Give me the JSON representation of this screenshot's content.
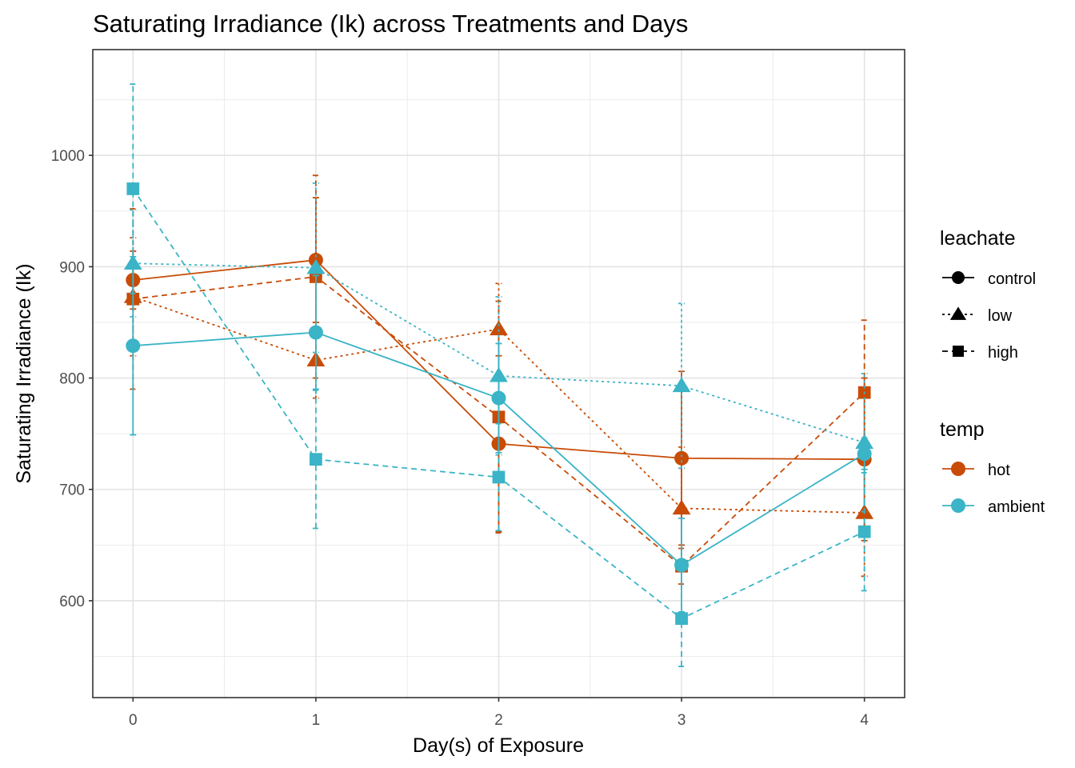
{
  "chart_data": {
    "type": "line",
    "title": "Saturating Irradiance (Ik) across Treatments and Days",
    "xlabel": "Day(s) of Exposure",
    "ylabel": "Saturating Irradiance (Ik)",
    "x": [
      0,
      1,
      2,
      3,
      4
    ],
    "x_ticks": [
      "0",
      "1",
      "2",
      "3",
      "4"
    ],
    "xlim": [
      -0.22,
      4.22
    ],
    "ylim": [
      513,
      1095
    ],
    "y_ticks": [
      600,
      700,
      800,
      900,
      1000
    ],
    "y_tick_labels": [
      "600",
      "700",
      "800",
      "900",
      "1000"
    ],
    "grid": true,
    "legend_placement": "right",
    "colors": {
      "hot": "#c84b06",
      "ambient": "#3ab4c6"
    },
    "legends": [
      {
        "title": "leachate",
        "entries": [
          {
            "key": "control",
            "label": "control",
            "shape": "circle",
            "linetype": "solid"
          },
          {
            "key": "low",
            "label": "low",
            "shape": "triangle",
            "linetype": "dotted"
          },
          {
            "key": "high",
            "label": "high",
            "shape": "square",
            "linetype": "dashed"
          }
        ]
      },
      {
        "title": "temp",
        "entries": [
          {
            "key": "hot",
            "label": "hot"
          },
          {
            "key": "ambient",
            "label": "ambient"
          }
        ]
      }
    ],
    "series": [
      {
        "temp": "hot",
        "leachate": "control",
        "values": [
          888,
          906,
          741,
          728,
          727
        ],
        "err_low": [
          862,
          850,
          662,
          650,
          654
        ],
        "err_high": [
          914,
          962,
          820,
          806,
          800
        ]
      },
      {
        "temp": "hot",
        "leachate": "low",
        "values": [
          873,
          816,
          844,
          683,
          679
        ],
        "err_low": [
          820,
          782,
          803,
          630,
          622
        ],
        "err_high": [
          926,
          850,
          885,
          738,
          736
        ]
      },
      {
        "temp": "hot",
        "leachate": "high",
        "values": [
          871,
          891,
          765,
          631,
          787
        ],
        "err_low": [
          790,
          800,
          661,
          615,
          722
        ],
        "err_high": [
          952,
          982,
          869,
          647,
          852
        ]
      },
      {
        "temp": "ambient",
        "leachate": "control",
        "values": [
          829,
          841,
          782,
          632,
          732
        ],
        "err_low": [
          749,
          790,
          733,
          590,
          718
        ],
        "err_high": [
          909,
          892,
          831,
          674,
          746
        ]
      },
      {
        "temp": "ambient",
        "leachate": "low",
        "values": [
          903,
          899,
          802,
          793,
          742
        ],
        "err_low": [
          855,
          823,
          731,
          719,
          680
        ],
        "err_high": [
          951,
          975,
          873,
          867,
          804
        ]
      },
      {
        "temp": "ambient",
        "leachate": "high",
        "values": [
          970,
          727,
          711,
          584,
          662
        ],
        "err_low": [
          876,
          665,
          663,
          541,
          609
        ],
        "err_high": [
          1064,
          789,
          759,
          627,
          715
        ]
      }
    ]
  }
}
